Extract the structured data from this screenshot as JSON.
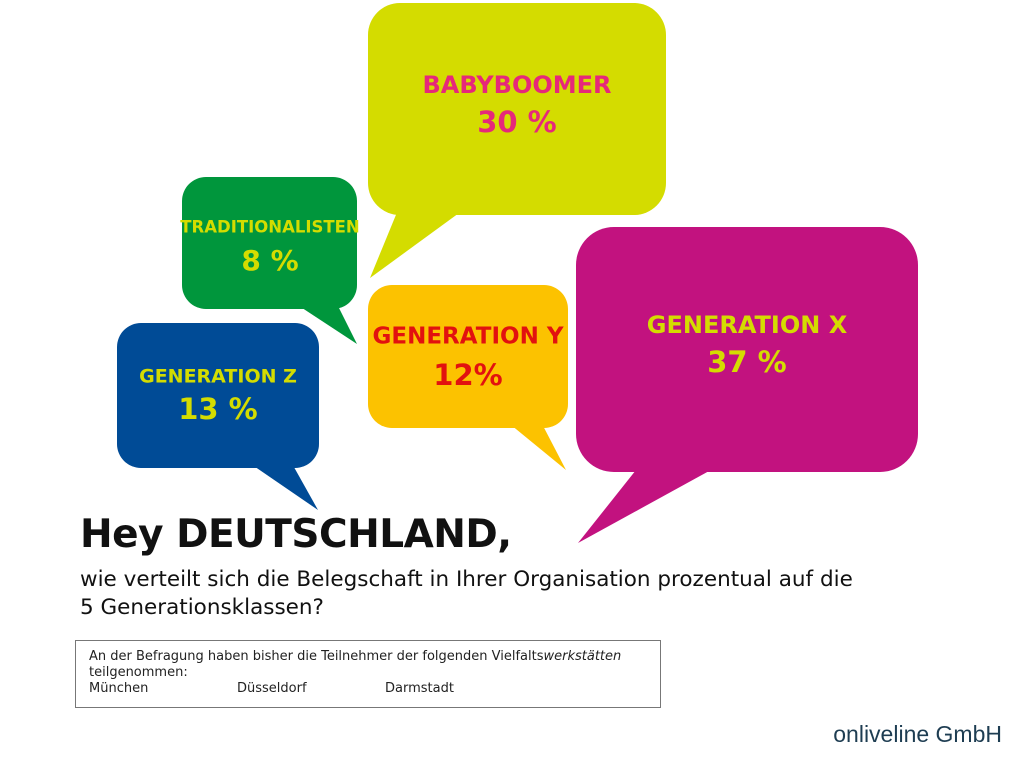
{
  "chart_data": {
    "type": "bubble-callouts",
    "categories": [
      "BABYBOOMER",
      "TRADITIONALISTEN",
      "GENERATION Y",
      "GENERATION X",
      "GENERATION Z"
    ],
    "value_labels": [
      "30 %",
      "8 %",
      "12%",
      "37 %",
      "13 %"
    ],
    "values": [
      30,
      8,
      12,
      37,
      13
    ],
    "unit": "%",
    "colors": {
      "bubbles": [
        "#d4dc00",
        "#00963c",
        "#fcc200",
        "#c2127f",
        "#004b96"
      ],
      "labels": [
        "#e6287a",
        "#d4dc00",
        "#e2110f",
        "#d4dc00",
        "#d4dc00"
      ]
    }
  },
  "headline": {
    "prefix": "Hey ",
    "emphasis": "DEUTSCHLAND,"
  },
  "question": {
    "line1": "wie verteilt sich die Belegschaft in Ihrer Organisation prozentual auf die",
    "line2": "5 Generationsklassen?"
  },
  "note": {
    "text_before": "An der Befragung haben bisher die Teilnehmer der folgenden Vielfalts",
    "text_italic": "werkstätten",
    "text_after": "teilgenommen:",
    "cities": [
      "München",
      "Düsseldorf",
      "Darmstadt"
    ]
  },
  "footer": {
    "company": "onliveline GmbH"
  }
}
